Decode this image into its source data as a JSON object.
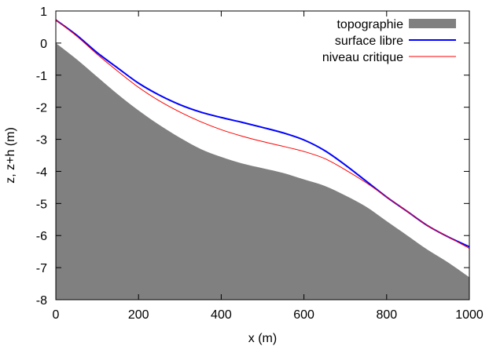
{
  "chart_data": {
    "type": "area",
    "xlabel": "x (m)",
    "ylabel": "z, z+h (m)",
    "xlim": [
      0,
      1000
    ],
    "ylim": [
      -8,
      1
    ],
    "xticks": [
      0,
      200,
      400,
      600,
      800,
      1000
    ],
    "yticks": [
      -8,
      -7,
      -6,
      -5,
      -4,
      -3,
      -2,
      -1,
      0,
      1
    ],
    "grid": false,
    "legend": "top-right",
    "series": [
      {
        "name": "topographie",
        "style": "filled-area",
        "color": "#808080",
        "x": [
          0,
          50,
          100,
          150,
          200,
          250,
          300,
          350,
          400,
          450,
          500,
          550,
          600,
          650,
          700,
          750,
          800,
          850,
          900,
          950,
          1000
        ],
        "values": [
          0.0,
          -0.5,
          -1.05,
          -1.6,
          -2.1,
          -2.55,
          -2.95,
          -3.3,
          -3.55,
          -3.75,
          -3.9,
          -4.05,
          -4.25,
          -4.45,
          -4.75,
          -5.1,
          -5.55,
          -6.0,
          -6.45,
          -6.85,
          -7.3
        ]
      },
      {
        "name": "surface libre",
        "style": "line",
        "color": "#0000ff",
        "x": [
          0,
          50,
          100,
          150,
          200,
          250,
          300,
          350,
          400,
          450,
          500,
          550,
          600,
          650,
          700,
          750,
          800,
          850,
          900,
          950,
          1000
        ],
        "values": [
          0.72,
          0.25,
          -0.3,
          -0.78,
          -1.25,
          -1.62,
          -1.92,
          -2.15,
          -2.32,
          -2.47,
          -2.63,
          -2.8,
          -3.02,
          -3.35,
          -3.8,
          -4.3,
          -4.8,
          -5.25,
          -5.7,
          -6.05,
          -6.35
        ]
      },
      {
        "name": "niveau critique",
        "style": "line",
        "color": "#ff0000",
        "x": [
          0,
          50,
          100,
          150,
          200,
          250,
          300,
          350,
          400,
          450,
          500,
          550,
          600,
          650,
          700,
          750,
          800,
          850,
          900,
          950,
          1000
        ],
        "values": [
          0.72,
          0.22,
          -0.35,
          -0.88,
          -1.38,
          -1.8,
          -2.15,
          -2.45,
          -2.7,
          -2.9,
          -3.07,
          -3.22,
          -3.38,
          -3.6,
          -3.95,
          -4.35,
          -4.8,
          -5.25,
          -5.7,
          -6.05,
          -6.4
        ]
      }
    ]
  }
}
